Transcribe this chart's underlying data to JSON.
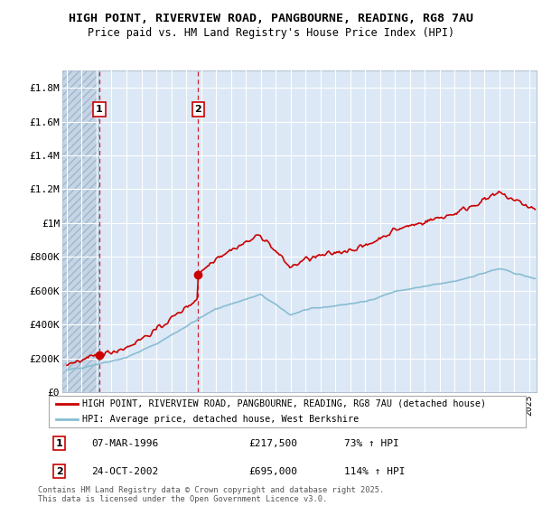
{
  "title": "HIGH POINT, RIVERVIEW ROAD, PANGBOURNE, READING, RG8 7AU",
  "subtitle": "Price paid vs. HM Land Registry's House Price Index (HPI)",
  "ylabel_ticks": [
    "£0",
    "£200K",
    "£400K",
    "£600K",
    "£800K",
    "£1M",
    "£1.2M",
    "£1.4M",
    "£1.6M",
    "£1.8M"
  ],
  "ytick_values": [
    0,
    200000,
    400000,
    600000,
    800000,
    1000000,
    1200000,
    1400000,
    1600000,
    1800000
  ],
  "ylim": [
    0,
    1900000
  ],
  "xlim_start": 1993.7,
  "xlim_end": 2025.5,
  "sale1_x": 1996.18,
  "sale1_y": 217500,
  "sale1_label": "1",
  "sale1_date": "07-MAR-1996",
  "sale1_price": "£217,500",
  "sale1_hpi": "73% ↑ HPI",
  "sale2_x": 2002.81,
  "sale2_y": 695000,
  "sale2_label": "2",
  "sale2_date": "24-OCT-2002",
  "sale2_price": "£695,000",
  "sale2_hpi": "114% ↑ HPI",
  "property_color": "#cc0000",
  "hpi_color": "#89bdd3",
  "legend_property": "HIGH POINT, RIVERVIEW ROAD, PANGBOURNE, READING, RG8 7AU (detached house)",
  "legend_hpi": "HPI: Average price, detached house, West Berkshire",
  "footnote": "Contains HM Land Registry data © Crown copyright and database right 2025.\nThis data is licensed under the Open Government Licence v3.0.",
  "plot_bg": "#dce8f5",
  "hatch_region_bg": "#c8d8e8",
  "between_sales_bg": "#dce8f5"
}
